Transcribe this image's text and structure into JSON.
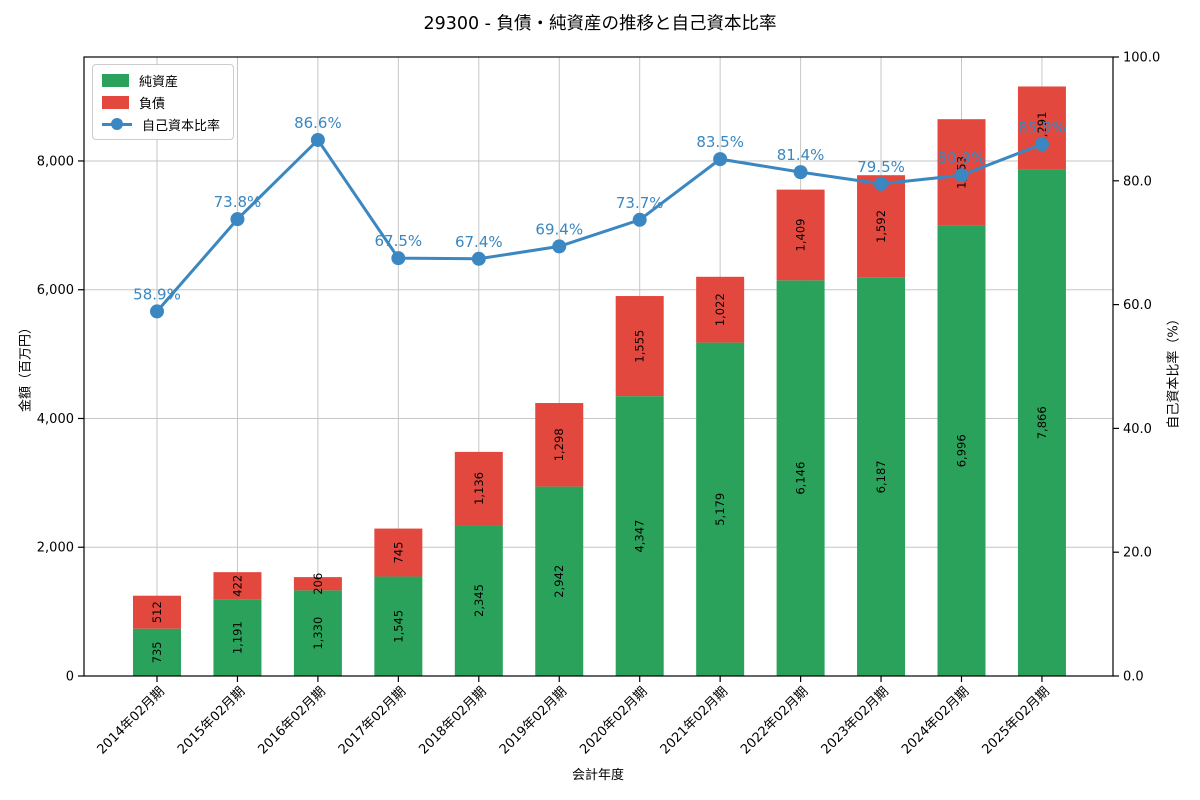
{
  "chart_data": {
    "type": "bar",
    "stacked": true,
    "overlay_line": true,
    "title": "29300 - 負債・純資産の推移と自己資本比率",
    "xlabel": "会計年度",
    "ylabel_left": "金額（百万円）",
    "ylabel_right": "自己資本比率（%）",
    "categories": [
      "2014年02月期",
      "2015年02月期",
      "2016年02月期",
      "2017年02月期",
      "2018年02月期",
      "2019年02月期",
      "2020年02月期",
      "2021年02月期",
      "2022年02月期",
      "2023年02月期",
      "2024年02月期",
      "2025年02月期"
    ],
    "series": [
      {
        "name": "純資産",
        "type": "bar",
        "axis": "left",
        "color": "#2aa25c",
        "values": [
          735,
          1191,
          1330,
          1545,
          2345,
          2942,
          4347,
          5179,
          6146,
          6187,
          6996,
          7866
        ],
        "labels": [
          "735",
          "1,191",
          "1,330",
          "1,545",
          "2,345",
          "2,942",
          "4,347",
          "5,179",
          "6,146",
          "6,187",
          "6,996",
          "7,866"
        ]
      },
      {
        "name": "負債",
        "type": "bar",
        "axis": "left",
        "color": "#e2483d",
        "values": [
          512,
          422,
          206,
          745,
          1136,
          1298,
          1555,
          1022,
          1409,
          1592,
          1653,
          1291
        ],
        "labels": [
          "512",
          "422",
          "206",
          "745",
          "1,136",
          "1,298",
          "1,555",
          "1,022",
          "1,409",
          "1,592",
          "1,653",
          "1,291"
        ]
      },
      {
        "name": "自己資本比率",
        "type": "line",
        "axis": "right",
        "color": "#3a87c2",
        "values": [
          58.9,
          73.8,
          86.6,
          67.5,
          67.4,
          69.4,
          73.7,
          83.5,
          81.4,
          79.5,
          80.9,
          85.9
        ],
        "labels": [
          "58.9%",
          "73.8%",
          "86.6%",
          "67.5%",
          "67.4%",
          "69.4%",
          "73.7%",
          "83.5%",
          "81.4%",
          "79.5%",
          "80.9%",
          "85.9%"
        ]
      }
    ],
    "ylim_left": [
      0,
      9615
    ],
    "ylim_right": [
      0,
      100
    ],
    "yticks_left": [
      0,
      2000,
      4000,
      6000,
      8000
    ],
    "yticks_left_labels": [
      "0",
      "2,000",
      "4,000",
      "6,000",
      "8,000"
    ],
    "yticks_right": [
      0,
      20,
      40,
      60,
      80,
      100
    ],
    "yticks_right_labels": [
      "0.0",
      "20.0",
      "40.0",
      "60.0",
      "80.0",
      "100.0"
    ],
    "grid": true,
    "legend_position": "upper-left",
    "grid_color": "#c6c6c6",
    "bar_label_color": "#000000",
    "axis_color": "#000000"
  }
}
